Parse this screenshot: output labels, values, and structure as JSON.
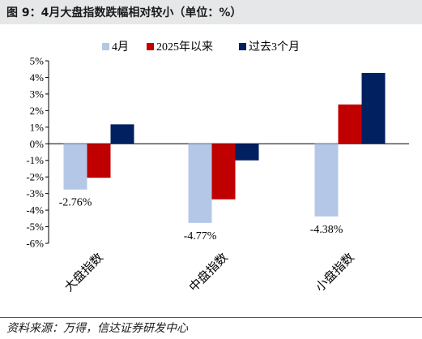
{
  "title": "图 9：4月大盘指数跌幅相对较小（单位：%）",
  "source": "资料来源：万得，信达证券研发中心",
  "chart_data": {
    "type": "bar",
    "categories": [
      "大盘指数",
      "中盘指数",
      "小盘指数"
    ],
    "series": [
      {
        "name": "4月",
        "values": [
          -2.76,
          -4.77,
          -4.38
        ],
        "color": "#b4c7e7"
      },
      {
        "name": "2025年以来",
        "values": [
          -2.05,
          -3.35,
          2.37
        ],
        "color": "#c00000"
      },
      {
        "name": "过去3个月",
        "values": [
          1.17,
          -1.0,
          4.27
        ],
        "color": "#002060"
      }
    ],
    "data_labels": [
      {
        "series": 0,
        "category": 0,
        "text": "-2.76%"
      },
      {
        "series": 0,
        "category": 1,
        "text": "-4.77%"
      },
      {
        "series": 0,
        "category": 2,
        "text": "-4.38%"
      }
    ],
    "ylim": [
      -6,
      5
    ],
    "yticks": [
      5,
      4,
      3,
      2,
      1,
      0,
      -1,
      -2,
      -3,
      -4,
      -5,
      -6
    ],
    "ytick_labels": [
      "5%",
      "4%",
      "3%",
      "2%",
      "1%",
      "0%",
      "-1%",
      "-2%",
      "-3%",
      "-4%",
      "-5%",
      "-6%"
    ],
    "legend_position": "top",
    "grid": false
  }
}
